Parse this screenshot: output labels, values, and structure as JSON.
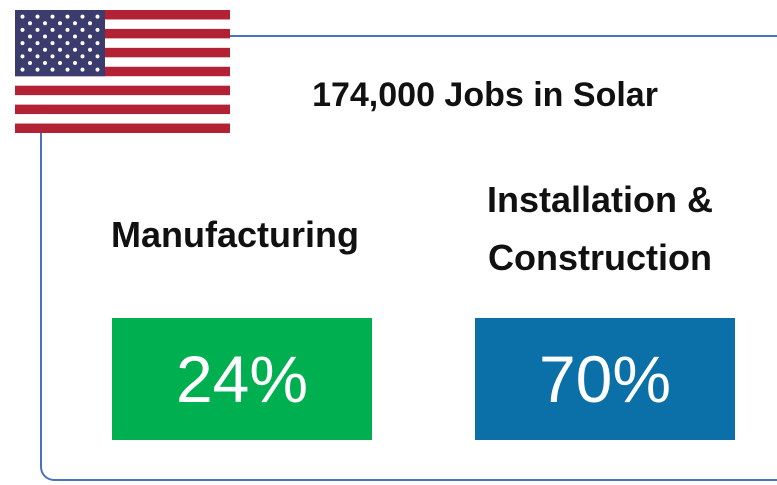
{
  "header": {
    "title": "174,000 Jobs in Solar"
  },
  "sections": [
    {
      "label": "Manufacturing",
      "value": "24%"
    },
    {
      "label": "Installation & Construction",
      "value": "70%"
    }
  ]
}
